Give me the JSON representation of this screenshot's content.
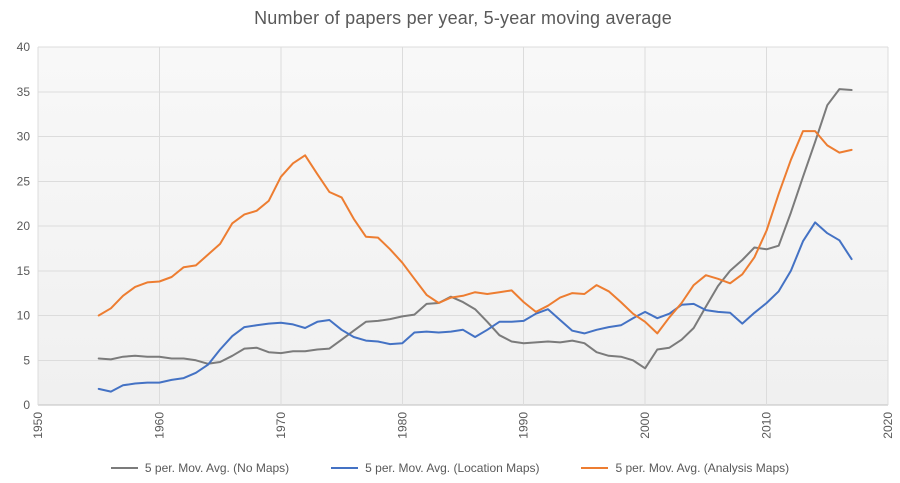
{
  "chart_data": {
    "type": "line",
    "title": "Number of papers per year, 5-year moving average",
    "xlim": [
      1950,
      2020
    ],
    "ylim": [
      0,
      40
    ],
    "x_ticks": [
      1950,
      1960,
      1970,
      1980,
      1990,
      2000,
      2010,
      2020
    ],
    "y_ticks": [
      0,
      5,
      10,
      15,
      20,
      25,
      30,
      35,
      40
    ],
    "grid": true,
    "legend_position": "bottom",
    "x": [
      1955,
      1956,
      1957,
      1958,
      1959,
      1960,
      1961,
      1962,
      1963,
      1964,
      1965,
      1966,
      1967,
      1968,
      1969,
      1970,
      1971,
      1972,
      1973,
      1974,
      1975,
      1976,
      1977,
      1978,
      1979,
      1980,
      1981,
      1982,
      1983,
      1984,
      1985,
      1986,
      1987,
      1988,
      1989,
      1990,
      1991,
      1992,
      1993,
      1994,
      1995,
      1996,
      1997,
      1998,
      1999,
      2000,
      2001,
      2002,
      2003,
      2004,
      2005,
      2006,
      2007,
      2008,
      2009,
      2010,
      2011,
      2012,
      2013,
      2014,
      2015,
      2016,
      2017
    ],
    "series": [
      {
        "name": "5 per. Mov. Avg. (No Maps)",
        "color": "#7b7b7b",
        "values": [
          5.2,
          5.1,
          5.4,
          5.5,
          5.4,
          5.4,
          5.2,
          5.2,
          5.0,
          4.6,
          4.8,
          5.5,
          6.3,
          6.4,
          5.9,
          5.8,
          6.0,
          6.0,
          6.2,
          6.3,
          7.3,
          8.3,
          9.3,
          9.4,
          9.6,
          9.9,
          10.1,
          11.3,
          11.4,
          12.1,
          11.5,
          10.7,
          9.3,
          7.8,
          7.1,
          6.9,
          7.0,
          7.1,
          7.0,
          7.2,
          6.9,
          5.9,
          5.5,
          5.4,
          5.0,
          4.1,
          6.2,
          6.4,
          7.3,
          8.6,
          11.0,
          13.3,
          15.0,
          16.2,
          17.6,
          17.4,
          17.8,
          21.5,
          25.5,
          29.4,
          33.5,
          35.3,
          35.2
        ]
      },
      {
        "name": "5 per. Mov. Avg. (Location Maps)",
        "color": "#4472c4",
        "values": [
          1.8,
          1.5,
          2.2,
          2.4,
          2.5,
          2.5,
          2.8,
          3.0,
          3.6,
          4.5,
          6.2,
          7.7,
          8.7,
          8.9,
          9.1,
          9.2,
          9.0,
          8.6,
          9.3,
          9.5,
          8.4,
          7.6,
          7.2,
          7.1,
          6.8,
          6.9,
          8.1,
          8.2,
          8.1,
          8.2,
          8.4,
          7.6,
          8.4,
          9.3,
          9.3,
          9.4,
          10.2,
          10.7,
          9.5,
          8.3,
          8.0,
          8.4,
          8.7,
          8.9,
          9.7,
          10.4,
          9.7,
          10.2,
          11.2,
          11.3,
          10.6,
          10.4,
          10.3,
          9.1,
          10.3,
          11.4,
          12.7,
          15.0,
          18.3,
          20.4,
          19.2,
          18.4,
          16.3
        ]
      },
      {
        "name": "5 per. Mov. Avg. (Analysis Maps)",
        "color": "#ed7d31",
        "values": [
          10.0,
          10.8,
          12.2,
          13.2,
          13.7,
          13.8,
          14.3,
          15.4,
          15.6,
          16.8,
          18.0,
          20.3,
          21.3,
          21.7,
          22.8,
          25.5,
          27.0,
          27.9,
          25.8,
          23.8,
          23.2,
          20.8,
          18.8,
          18.7,
          17.4,
          15.9,
          14.1,
          12.3,
          11.4,
          12.0,
          12.2,
          12.6,
          12.4,
          12.6,
          12.8,
          11.5,
          10.4,
          11.1,
          12.0,
          12.5,
          12.4,
          13.4,
          12.7,
          11.5,
          10.2,
          9.3,
          8.0,
          9.8,
          11.4,
          13.4,
          14.5,
          14.1,
          13.6,
          14.6,
          16.5,
          19.5,
          23.6,
          27.4,
          30.6,
          30.6,
          29.0,
          28.2,
          28.5
        ]
      }
    ],
    "colors": {
      "title_text": "#595959",
      "axis_text": "#595959",
      "gridline": "#dcdcdc",
      "axis_line": "#bfbfbf",
      "plot_bg_top": "#f8f8f8",
      "plot_bg_bottom": "#f0f0f0"
    }
  }
}
